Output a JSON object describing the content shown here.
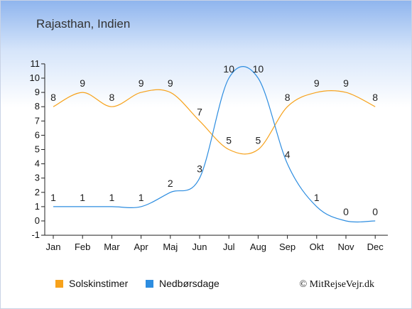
{
  "chart_data": {
    "type": "line",
    "title": "Rajasthan, Indien",
    "categories": [
      "Jan",
      "Feb",
      "Mar",
      "Apr",
      "Maj",
      "Jun",
      "Jul",
      "Aug",
      "Sep",
      "Okt",
      "Nov",
      "Dec"
    ],
    "ylim": [
      -1,
      11
    ],
    "yticks": [
      -1,
      0,
      1,
      2,
      3,
      4,
      5,
      6,
      7,
      8,
      9,
      10,
      11
    ],
    "grid": false,
    "legend_position": "bottom-left",
    "series": [
      {
        "name": "Solskinstimer",
        "color": "#f7a21b",
        "values": [
          8,
          9,
          8,
          9,
          9,
          7,
          5,
          5,
          8,
          9,
          9,
          8
        ]
      },
      {
        "name": "Nedbørsdage",
        "color": "#2d8de0",
        "values": [
          1,
          1,
          1,
          1,
          2,
          3,
          10,
          10,
          4,
          1,
          0,
          0
        ]
      }
    ]
  },
  "credit": "© MitRejseVejr.dk"
}
